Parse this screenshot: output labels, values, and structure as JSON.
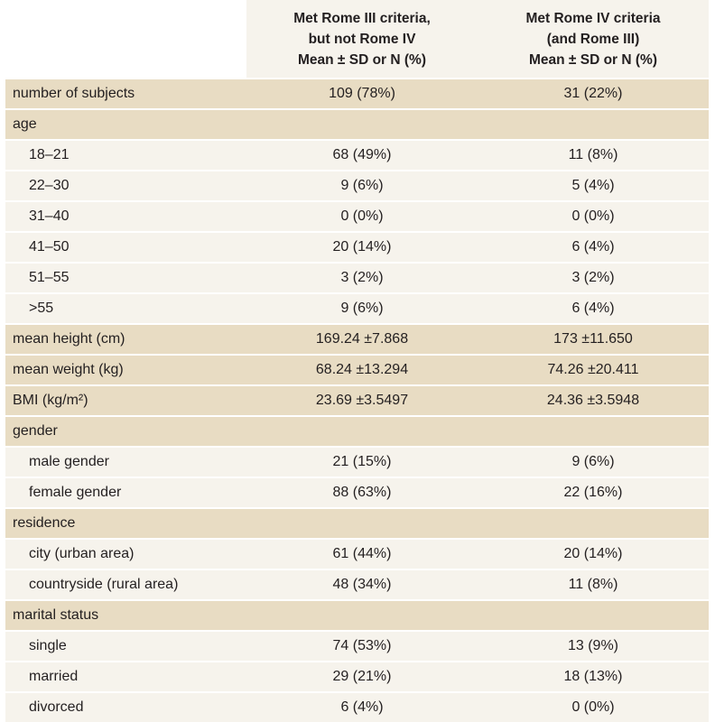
{
  "header": {
    "col2": [
      "Met Rome III criteria,",
      "but not Rome IV",
      "Mean ± SD or N (%)"
    ],
    "col3": [
      "Met Rome IV criteria",
      "(and Rome III)",
      "Mean ± SD or N (%)"
    ]
  },
  "rows": [
    {
      "label": "number of subjects",
      "rome3": "109 (78%)",
      "rome4": "31 (22%)",
      "level": "main"
    },
    {
      "label": "age",
      "rome3": "",
      "rome4": "",
      "level": "main"
    },
    {
      "label": "18–21",
      "rome3": "68 (49%)",
      "rome4": "11 (8%)",
      "level": "sub"
    },
    {
      "label": "22–30",
      "rome3": "9 (6%)",
      "rome4": "5 (4%)",
      "level": "sub"
    },
    {
      "label": "31–40",
      "rome3": "0 (0%)",
      "rome4": "0 (0%)",
      "level": "sub"
    },
    {
      "label": "41–50",
      "rome3": "20 (14%)",
      "rome4": "6 (4%)",
      "level": "sub"
    },
    {
      "label": "51–55",
      "rome3": "3 (2%)",
      "rome4": "3 (2%)",
      "level": "sub"
    },
    {
      "label": ">55",
      "rome3": "9 (6%)",
      "rome4": "6 (4%)",
      "level": "sub"
    },
    {
      "label": "mean height (cm)",
      "rome3": "169.24 ±7.868",
      "rome4": "173 ±11.650",
      "level": "main"
    },
    {
      "label": "mean weight (kg)",
      "rome3": "68.24 ±13.294",
      "rome4": "74.26 ±20.411",
      "level": "main"
    },
    {
      "label": "BMI (kg/m²)",
      "rome3": "23.69 ±3.5497",
      "rome4": "24.36 ±3.5948",
      "level": "main"
    },
    {
      "label": "gender",
      "rome3": "",
      "rome4": "",
      "level": "main"
    },
    {
      "label": "male gender",
      "rome3": "21 (15%)",
      "rome4": "9 (6%)",
      "level": "sub"
    },
    {
      "label": "female gender",
      "rome3": "88 (63%)",
      "rome4": "22 (16%)",
      "level": "sub"
    },
    {
      "label": "residence",
      "rome3": "",
      "rome4": "",
      "level": "main"
    },
    {
      "label": "city (urban area)",
      "rome3": "61 (44%)",
      "rome4": "20 (14%)",
      "level": "sub"
    },
    {
      "label": "countryside (rural area)",
      "rome3": "48 (34%)",
      "rome4": "11 (8%)",
      "level": "sub"
    },
    {
      "label": "marital status",
      "rome3": "",
      "rome4": "",
      "level": "main"
    },
    {
      "label": "single",
      "rome3": "74 (53%)",
      "rome4": "13 (9%)",
      "level": "sub"
    },
    {
      "label": "married",
      "rome3": "29 (21%)",
      "rome4": "18 (13%)",
      "level": "sub"
    },
    {
      "label": "divorced",
      "rome3": "6 (4%)",
      "rome4": "0 (0%)",
      "level": "sub"
    }
  ],
  "colors": {
    "main_row": "#e8dcc3",
    "sub_row": "#f6f3ec",
    "text": "#231f20"
  }
}
